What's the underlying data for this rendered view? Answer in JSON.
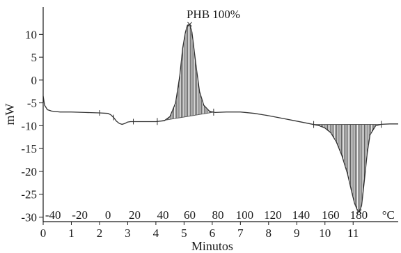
{
  "chart_data": {
    "type": "line",
    "title": "PHB 100%",
    "xlabel": "Minutos",
    "ylabel": "mW",
    "xlim": [
      0,
      12.6
    ],
    "ylim": [
      -31,
      16
    ],
    "x_ticks": [
      0,
      1,
      2,
      3,
      4,
      5,
      6,
      7,
      8,
      9,
      10,
      11
    ],
    "x_tick_labels": [
      "0",
      "1",
      "2",
      "3",
      "4",
      "5",
      "6",
      "7",
      "8",
      "9",
      "10",
      "11"
    ],
    "y_ticks": [
      10,
      5,
      0,
      -5,
      -10,
      -15,
      -20,
      -25,
      -30
    ],
    "y_tick_labels": [
      "10",
      "5",
      "0",
      "-5",
      "-10",
      "-15",
      "-20",
      "-25",
      "-30"
    ],
    "temperature_axis": {
      "ticks": [
        {
          "minutes": 0.35,
          "label": "-40"
        },
        {
          "minutes": 1.3,
          "label": "-20"
        },
        {
          "minutes": 2.3,
          "label": "0"
        },
        {
          "minutes": 3.25,
          "label": "20"
        },
        {
          "minutes": 4.25,
          "label": "40"
        },
        {
          "minutes": 5.2,
          "label": "60"
        },
        {
          "minutes": 6.2,
          "label": "80"
        },
        {
          "minutes": 7.15,
          "label": "100"
        },
        {
          "minutes": 8.15,
          "label": "120"
        },
        {
          "minutes": 9.15,
          "label": "140"
        },
        {
          "minutes": 10.2,
          "label": "160"
        },
        {
          "minutes": 11.2,
          "label": "180"
        }
      ],
      "unit_label": "°C"
    },
    "series": [
      {
        "x": [
          0,
          0.05,
          0.15,
          0.3,
          0.6,
          1.0,
          1.5,
          2.0,
          2.3,
          2.4,
          2.5,
          2.6,
          2.7,
          2.8,
          2.9,
          3.0,
          3.1,
          3.3,
          3.6,
          4.0,
          4.3,
          4.5,
          4.7,
          4.85,
          4.95,
          5.05,
          5.12,
          5.2,
          5.28,
          5.35,
          5.45,
          5.55,
          5.7,
          5.9,
          6.1,
          6.5,
          7.0,
          7.5,
          8.0,
          8.5,
          9.0,
          9.5,
          9.8,
          10.0,
          10.2,
          10.4,
          10.6,
          10.8,
          10.95,
          11.05,
          11.15,
          11.22,
          11.3,
          11.4,
          11.5,
          11.6,
          11.8,
          12.0,
          12.3,
          12.6
        ],
        "y": [
          -3.5,
          -5.5,
          -6.5,
          -6.8,
          -7.0,
          -7.0,
          -7.1,
          -7.2,
          -7.3,
          -7.6,
          -8.2,
          -9.0,
          -9.5,
          -9.7,
          -9.5,
          -9.2,
          -9.1,
          -9.1,
          -9.1,
          -9.1,
          -8.9,
          -8.0,
          -5.0,
          1.0,
          7.0,
          10.5,
          12.0,
          12.2,
          10.5,
          7.0,
          2.0,
          -2.5,
          -5.5,
          -6.8,
          -7.1,
          -7.0,
          -7.0,
          -7.3,
          -7.8,
          -8.4,
          -9.0,
          -9.6,
          -10.0,
          -10.5,
          -11.5,
          -13.5,
          -16.5,
          -20.5,
          -24.5,
          -27.0,
          -28.5,
          -28.8,
          -27.5,
          -22.0,
          -16.0,
          -12.0,
          -10.0,
          -9.7,
          -9.6,
          -9.6
        ]
      }
    ],
    "peaks": [
      {
        "kind": "exothermic",
        "x_range": [
          4.05,
          6.05
        ],
        "peak_x": 5.2,
        "peak_y": 12.2
      },
      {
        "kind": "endothermic",
        "x_range": [
          9.6,
          12.0
        ],
        "peak_x": 11.22,
        "peak_y": -28.8
      }
    ],
    "grid": false,
    "legend": "none"
  }
}
